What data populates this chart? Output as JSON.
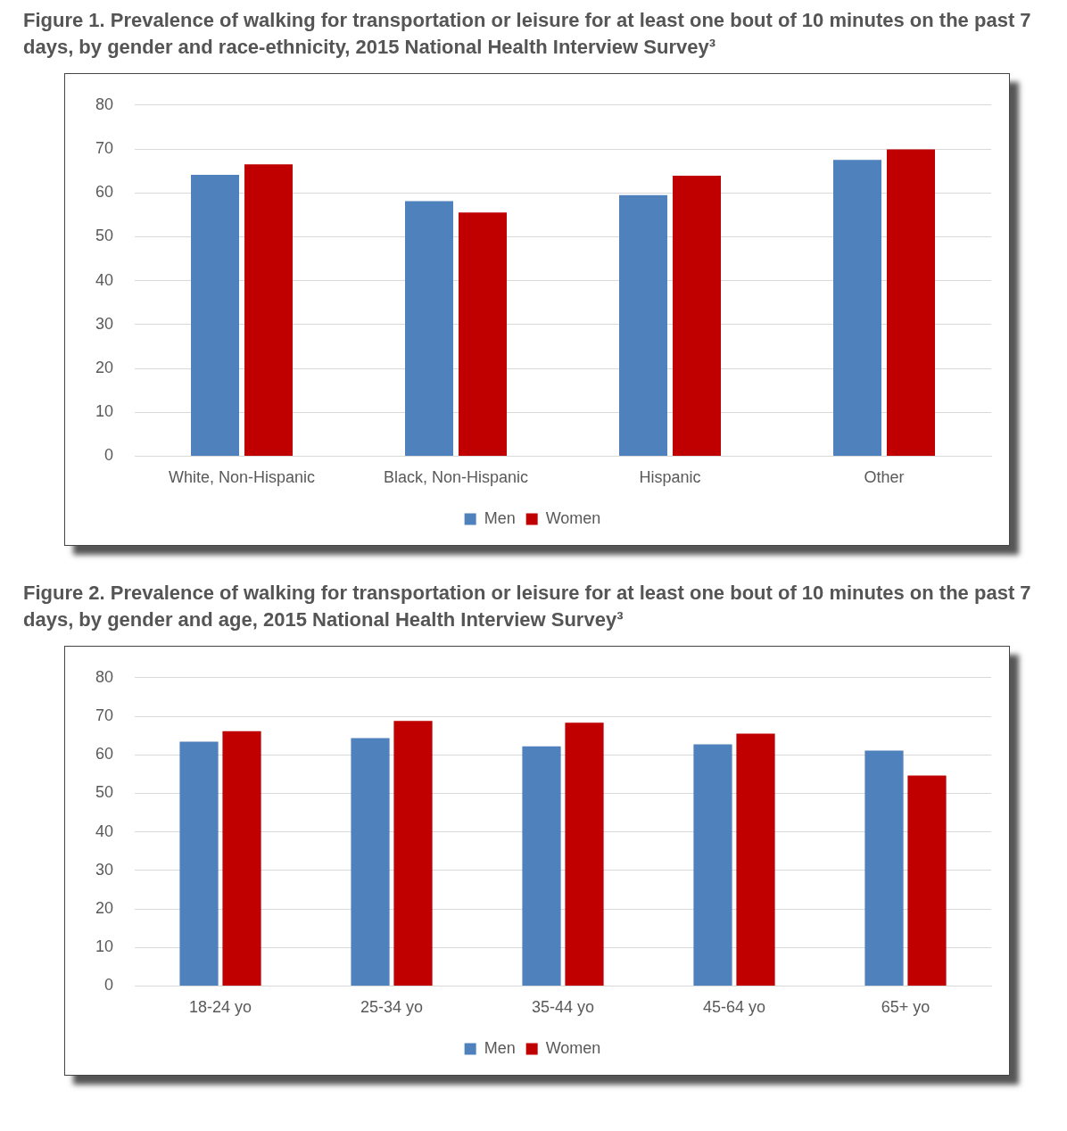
{
  "chart_data": [
    {
      "type": "bar",
      "title": "Figure 1. Prevalence of walking for transportation or leisure for at least one bout of 10 minutes on the past 7 days, by gender and race-ethnicity, 2015 National Health Interview Survey³",
      "categories": [
        "White, Non-Hispanic",
        "Black, Non-Hispanic",
        "Hispanic",
        "Other"
      ],
      "series": [
        {
          "name": "Men",
          "color": "#4f81bd",
          "values": [
            64.1,
            58.1,
            59.5,
            67.5
          ]
        },
        {
          "name": "Women",
          "color": "#c00000",
          "values": [
            66.5,
            55.5,
            63.9,
            69.9
          ]
        }
      ],
      "ylim": [
        0,
        80
      ],
      "yticks": [
        0,
        10,
        20,
        30,
        40,
        50,
        60,
        70,
        80
      ],
      "grid": "y",
      "legend": "bottom"
    },
    {
      "type": "bar",
      "title": "Figure 2. Prevalence of walking for transportation or leisure for at least one bout of 10 minutes on the past 7 days, by gender and age, 2015 National Health Interview Survey³",
      "categories": [
        "18-24 yo",
        "25-34 yo",
        "35-44 yo",
        "45-64 yo",
        "65+ yo"
      ],
      "series": [
        {
          "name": "Men",
          "color": "#4f81bd",
          "values": [
            63.4,
            64.3,
            62.2,
            62.7,
            61.1
          ]
        },
        {
          "name": "Women",
          "color": "#c00000",
          "values": [
            66.1,
            68.8,
            68.3,
            65.5,
            54.6
          ]
        }
      ],
      "ylim": [
        0,
        80
      ],
      "yticks": [
        0,
        10,
        20,
        30,
        40,
        50,
        60,
        70,
        80
      ],
      "grid": "y",
      "legend": "bottom"
    }
  ]
}
